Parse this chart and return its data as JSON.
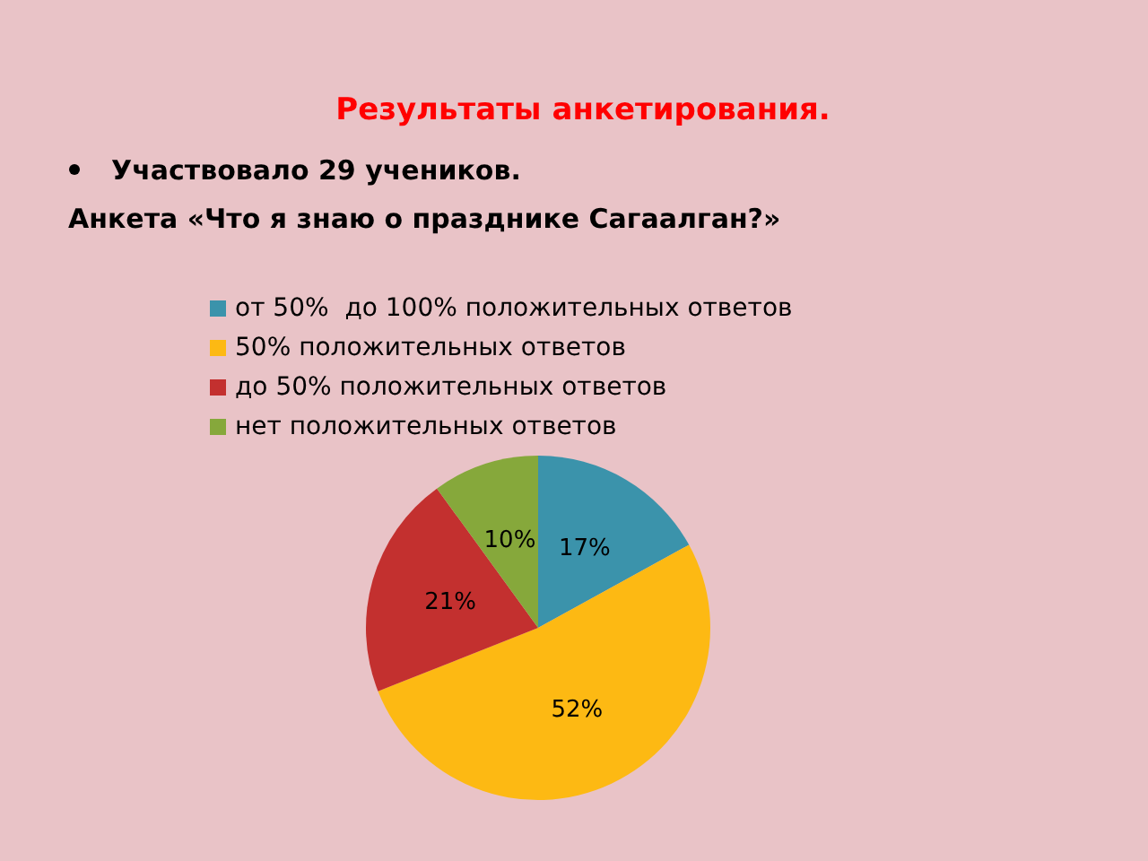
{
  "chart_data": {
    "type": "pie",
    "title": "Результаты анкетирования.",
    "annotations": [
      "Участвовало 29 учеников.",
      "Анкета «Что я знаю о празднике Сагаалган?»"
    ],
    "categories": [
      "от 50%  до 100% положительных ответов",
      "50% положительных ответов",
      "до 50% положительных ответов",
      "нет положительных ответов"
    ],
    "values": [
      17,
      52,
      21,
      10
    ],
    "value_labels": [
      "17%",
      "52%",
      "21%",
      "10%"
    ],
    "colors": [
      "#3b93ab",
      "#fdb913",
      "#c3302f",
      "#86a83b"
    ],
    "legend": "top"
  }
}
